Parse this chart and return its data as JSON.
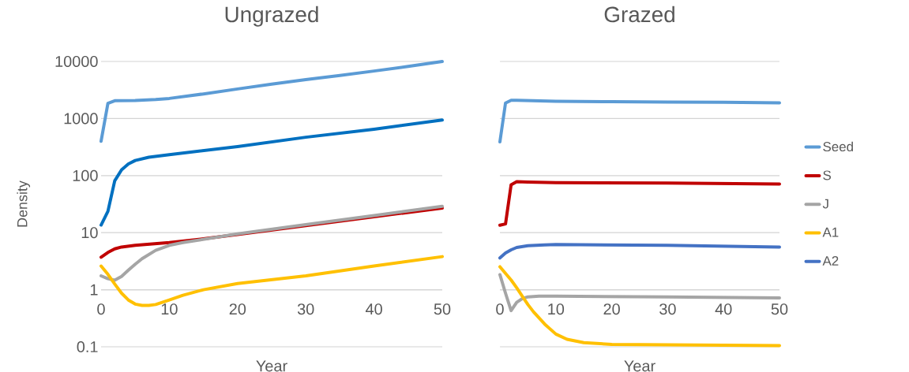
{
  "chart_data": [
    {
      "type": "line",
      "title": "Ungrazed",
      "xlabel": "Year",
      "ylabel": "Density",
      "log": "y",
      "grid": "y",
      "legend": false,
      "xlim": [
        0,
        50
      ],
      "ylim": [
        0.1,
        10000
      ],
      "xticks": [
        0,
        10,
        20,
        30,
        40,
        50
      ],
      "yticks": [
        0.1,
        1,
        10,
        100,
        1000,
        10000
      ],
      "series": [
        {
          "color": "#5b9bd5",
          "x": [
            0,
            1,
            2,
            5,
            8,
            10,
            15,
            20,
            25,
            30,
            35,
            40,
            45,
            50
          ],
          "values": [
            400,
            1850,
            2050,
            2070,
            2150,
            2250,
            2700,
            3300,
            4000,
            4800,
            5700,
            6800,
            8200,
            10000
          ]
        },
        {
          "color": "#c00000",
          "x": [
            0,
            1,
            2,
            3,
            5,
            10,
            15,
            20,
            30,
            40,
            50
          ],
          "values": [
            3.7,
            4.5,
            5.2,
            5.6,
            6.0,
            6.7,
            7.8,
            9.3,
            13.3,
            19,
            27
          ]
        },
        {
          "color": "#a5a5a5",
          "x": [
            0,
            1,
            2,
            3,
            4,
            5,
            6,
            8,
            10,
            12,
            20,
            30,
            40,
            50
          ],
          "values": [
            1.75,
            1.56,
            1.47,
            1.71,
            2.2,
            2.8,
            3.5,
            4.9,
            6.0,
            6.7,
            9.5,
            13.8,
            20,
            29
          ]
        },
        {
          "color": "#ffc000",
          "x": [
            0,
            1,
            2,
            3,
            4,
            5,
            6,
            7,
            8,
            10,
            12,
            15,
            20,
            30,
            40,
            50
          ],
          "values": [
            2.6,
            1.86,
            1.26,
            0.87,
            0.66,
            0.56,
            0.53,
            0.53,
            0.55,
            0.66,
            0.8,
            1.0,
            1.28,
            1.75,
            2.6,
            3.8
          ]
        },
        {
          "color": "#0070c0",
          "x": [
            0,
            1,
            2,
            3,
            4,
            5,
            7,
            10,
            20,
            30,
            40,
            50
          ],
          "values": [
            13.6,
            23.7,
            81,
            126,
            160,
            184,
            210,
            233,
            323,
            470,
            650,
            940
          ]
        }
      ]
    },
    {
      "type": "line",
      "title": "Grazed",
      "xlabel": "Year",
      "log": "y",
      "grid": "y",
      "legend": "right",
      "tick_labels": "x",
      "xlim": [
        0,
        50
      ],
      "ylim": [
        0.1,
        10000
      ],
      "xticks": [
        0,
        10,
        20,
        30,
        40,
        50
      ],
      "yticks": [
        0.1,
        1,
        10,
        100,
        1000,
        10000
      ],
      "series": [
        {
          "name": "Seed",
          "color": "#5b9bd5",
          "x": [
            0,
            1,
            2,
            3,
            10,
            20,
            30,
            40,
            50
          ],
          "values": [
            390,
            1870,
            2090,
            2090,
            2000,
            1970,
            1950,
            1930,
            1880
          ]
        },
        {
          "name": "S",
          "color": "#c00000",
          "x": [
            0,
            1,
            2,
            3,
            5,
            10,
            30,
            50
          ],
          "values": [
            13.5,
            14.2,
            69,
            78,
            77,
            75,
            74,
            71
          ]
        },
        {
          "name": "J",
          "color": "#a5a5a5",
          "x": [
            0,
            1,
            2,
            3,
            4,
            5,
            7,
            10,
            30,
            50
          ],
          "values": [
            1.84,
            0.87,
            0.43,
            0.6,
            0.7,
            0.75,
            0.77,
            0.77,
            0.75,
            0.72
          ]
        },
        {
          "name": "A1",
          "color": "#ffc000",
          "x": [
            0,
            2,
            3,
            4,
            5,
            6,
            7,
            8,
            10,
            12,
            15,
            20,
            30,
            50
          ],
          "values": [
            2.53,
            1.48,
            1.08,
            0.77,
            0.55,
            0.41,
            0.32,
            0.25,
            0.167,
            0.135,
            0.118,
            0.11,
            0.108,
            0.105
          ]
        },
        {
          "name": "A2",
          "color": "#4472c4",
          "x": [
            0,
            1,
            2,
            3,
            5,
            8,
            10,
            30,
            50
          ],
          "values": [
            3.6,
            4.4,
            5.0,
            5.5,
            5.9,
            6.1,
            6.2,
            6.0,
            5.6
          ]
        }
      ]
    }
  ]
}
